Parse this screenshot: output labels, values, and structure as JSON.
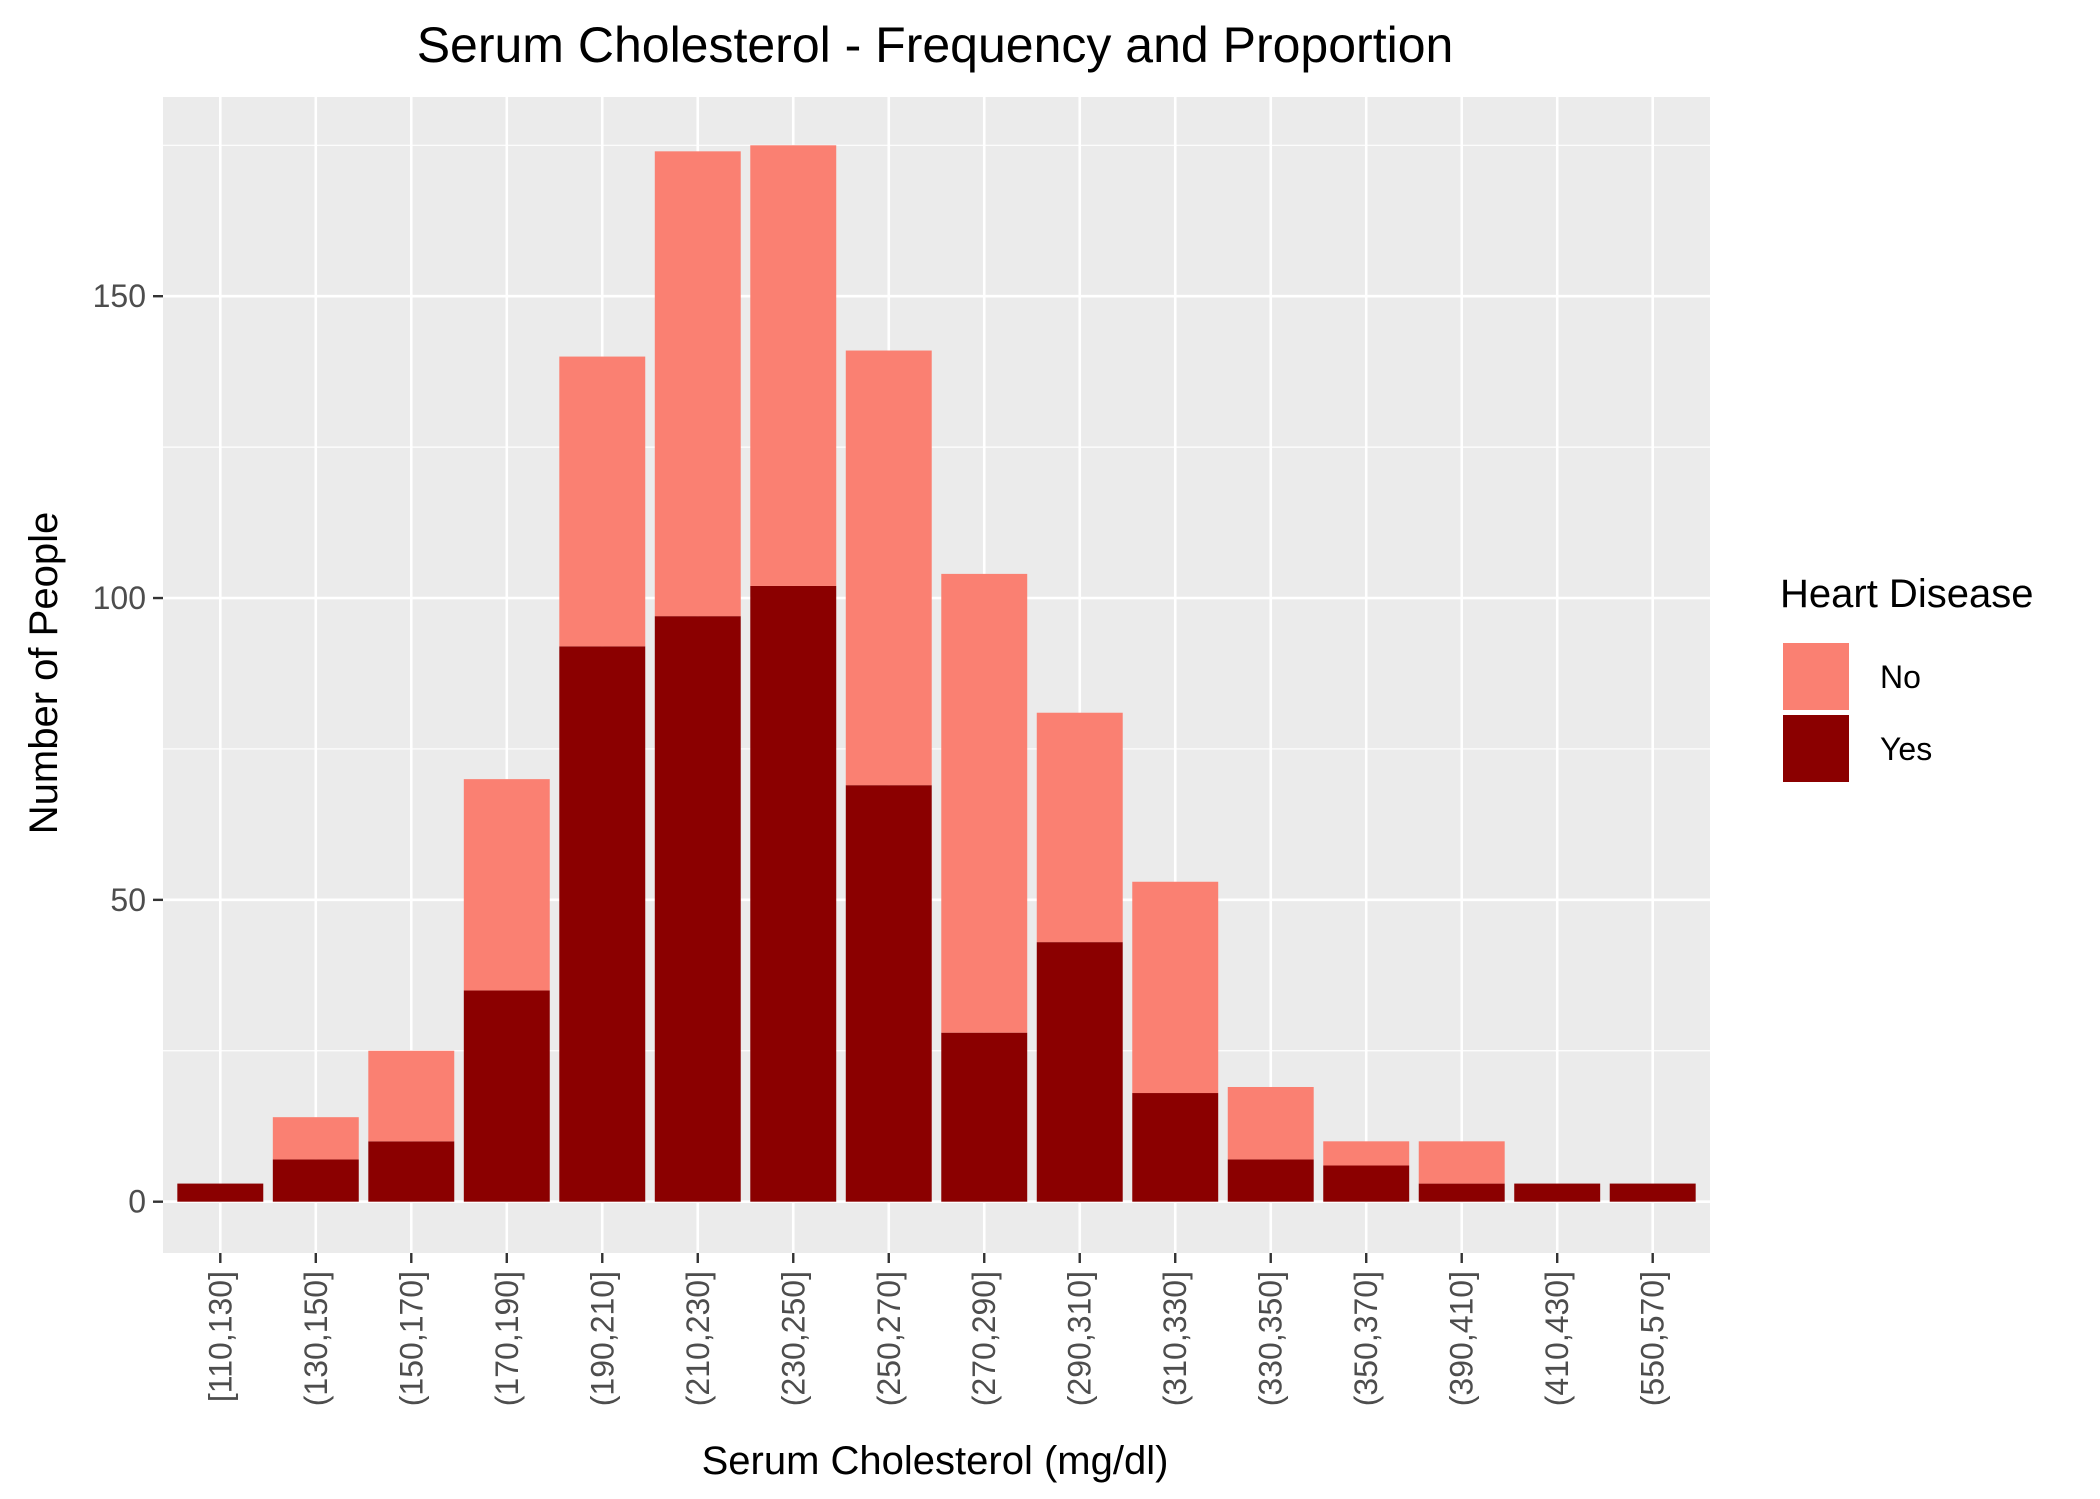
{
  "chart_data": {
    "type": "bar",
    "stacked": true,
    "title": "Serum Cholesterol - Frequency and Proportion",
    "xlabel": "Serum Cholesterol (mg/dl)",
    "ylabel": "Number of People",
    "ylim": [
      -8.5,
      183
    ],
    "yticks": [
      0,
      50,
      100,
      150
    ],
    "grid": true,
    "legend": {
      "title": "Heart Disease",
      "position": "right",
      "entries": [
        "No",
        "Yes"
      ]
    },
    "categories": [
      "[110,130]",
      "(130,150]",
      "(150,170]",
      "(170,190]",
      "(190,210]",
      "(210,230]",
      "(230,250]",
      "(250,270]",
      "(270,290]",
      "(290,310]",
      "(310,330]",
      "(330,350]",
      "(350,370]",
      "(390,410]",
      "(410,430]",
      "(550,570]"
    ],
    "series": [
      {
        "name": "Yes",
        "color": "#8b0000",
        "values": [
          3,
          7,
          10,
          35,
          92,
          97,
          102,
          69,
          28,
          43,
          18,
          7,
          6,
          3,
          3,
          3
        ]
      },
      {
        "name": "No",
        "color": "#fa8072",
        "values": [
          0,
          7,
          15,
          35,
          48,
          77,
          73,
          72,
          76,
          38,
          35,
          12,
          4,
          7,
          0,
          0
        ]
      }
    ],
    "colors": {
      "panel": "#ebebeb",
      "grid": "#ffffff"
    }
  }
}
